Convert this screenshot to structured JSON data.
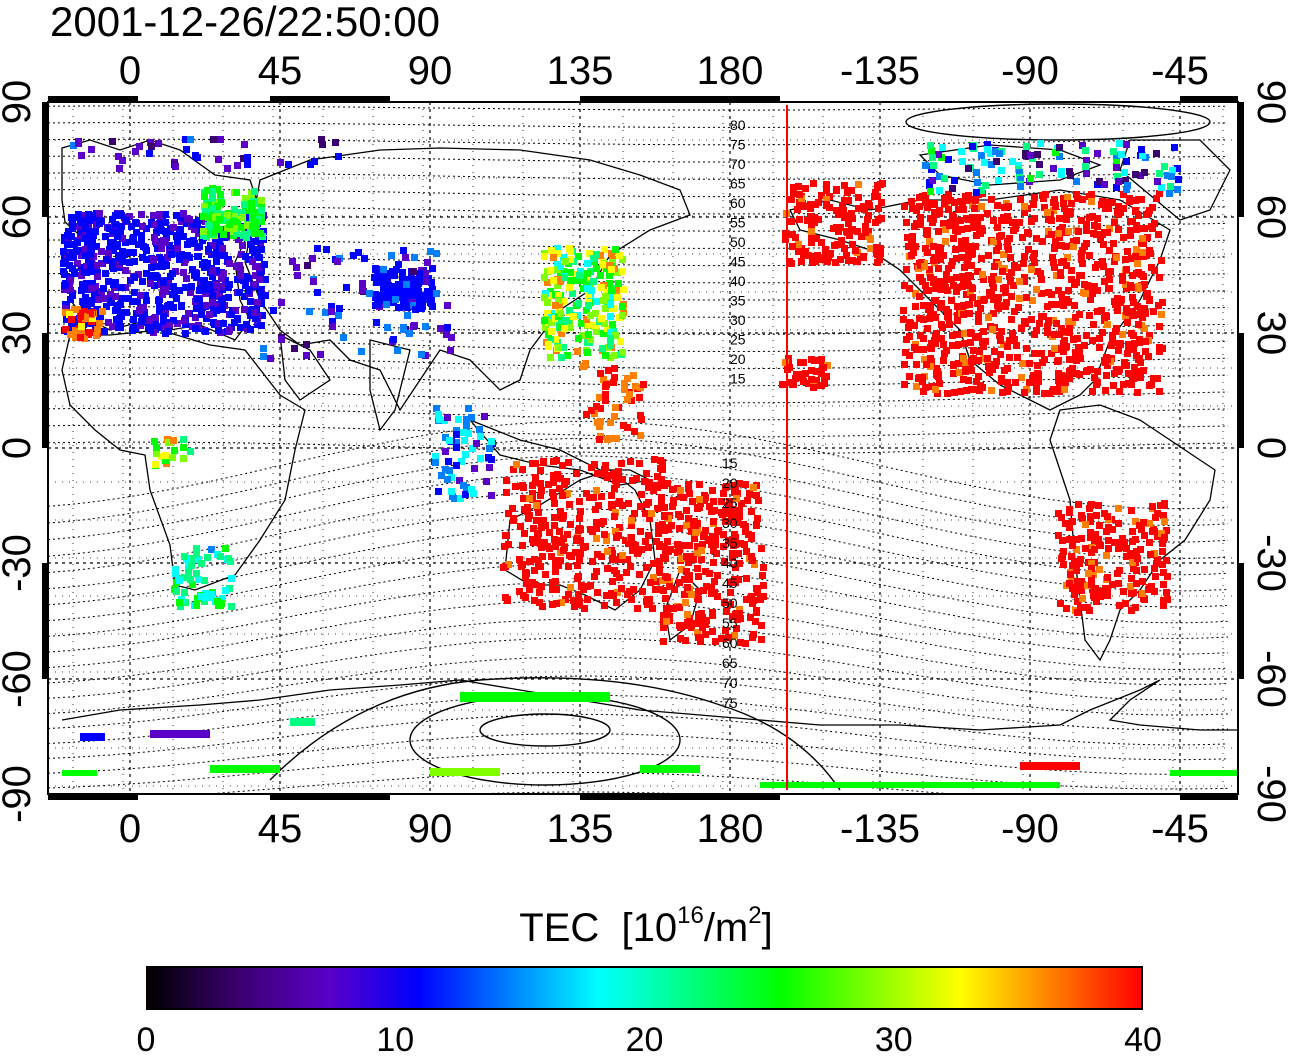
{
  "title": "2001-12-26/22:50:00",
  "map": {
    "longitude_labels": [
      "0",
      "45",
      "90",
      "135",
      "180",
      "-135",
      "-90",
      "-45"
    ],
    "latitude_labels": [
      "90",
      "60",
      "30",
      "0",
      "-30",
      "-60",
      "-90"
    ],
    "contour_labels": [
      "80",
      "75",
      "70",
      "65",
      "60",
      "55",
      "50",
      "45",
      "40",
      "35",
      "30",
      "25",
      "20",
      "15",
      "15",
      "20",
      "25",
      "30",
      "35",
      "40",
      "45",
      "50",
      "55",
      "60",
      "65",
      "70",
      "75"
    ],
    "terminator_color": "#ff0000",
    "contour_color": "#000000"
  },
  "colorbar": {
    "title": "TEC",
    "unit_prefix": "[10",
    "unit_exp": "16",
    "unit_mid": "/m",
    "unit_exp2": "2",
    "unit_suffix": "]",
    "ticks": [
      "0",
      "10",
      "20",
      "30",
      "40"
    ],
    "min": 0,
    "max": 40,
    "colormap": [
      "#000000",
      "#3b0070",
      "#5a00c8",
      "#0000ff",
      "#0080ff",
      "#00ffff",
      "#00ff80",
      "#00ff00",
      "#80ff00",
      "#ffff00",
      "#ff8000",
      "#ff0000"
    ]
  }
}
